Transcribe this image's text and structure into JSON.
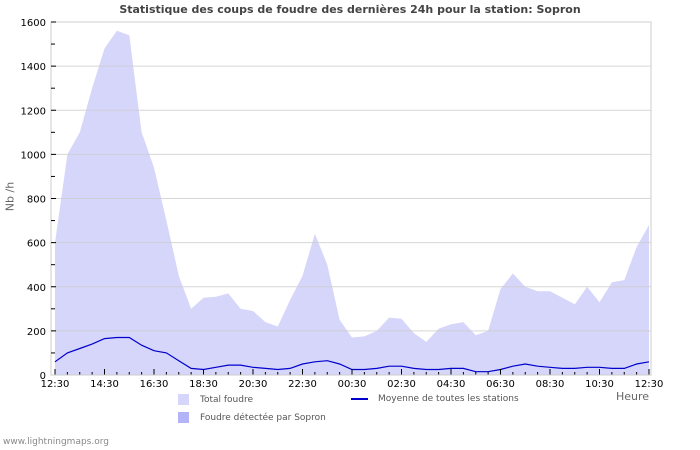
{
  "chart_data": {
    "type": "area",
    "title": "Statistique des coups de foudre des dernières 24h pour la station: Sopron",
    "xlabel": "Heure",
    "ylabel": "Nb /h",
    "ylim": [
      0,
      1600
    ],
    "yticks": [
      0,
      200,
      400,
      600,
      800,
      1000,
      1200,
      1400,
      1600
    ],
    "xtick_labels": [
      "12:30",
      "14:30",
      "16:30",
      "18:30",
      "20:30",
      "22:30",
      "00:30",
      "02:30",
      "04:30",
      "06:30",
      "08:30",
      "10:30",
      "12:30"
    ],
    "grid": true,
    "legend_position": "bottom",
    "x": [
      "12:30",
      "13:00",
      "13:30",
      "14:00",
      "14:30",
      "15:00",
      "15:30",
      "16:00",
      "16:30",
      "17:00",
      "17:30",
      "18:00",
      "18:30",
      "19:00",
      "19:30",
      "20:00",
      "20:30",
      "21:00",
      "21:30",
      "22:00",
      "22:30",
      "23:00",
      "23:30",
      "00:00",
      "00:30",
      "01:00",
      "01:30",
      "02:00",
      "02:30",
      "03:00",
      "03:30",
      "04:00",
      "04:30",
      "05:00",
      "05:30",
      "06:00",
      "06:30",
      "07:00",
      "07:30",
      "08:00",
      "08:30",
      "09:00",
      "09:30",
      "10:00",
      "10:30",
      "11:00",
      "11:30",
      "12:00",
      "12:30"
    ],
    "series": [
      {
        "name": "Total foudre",
        "type": "area",
        "color": "#d6d6fb",
        "values": [
          600,
          1000,
          1100,
          1300,
          1480,
          1560,
          1540,
          1100,
          940,
          700,
          450,
          300,
          350,
          355,
          370,
          300,
          290,
          240,
          220,
          340,
          450,
          640,
          500,
          250,
          170,
          175,
          200,
          260,
          255,
          190,
          150,
          210,
          230,
          240,
          180,
          200,
          390,
          460,
          400,
          380,
          380,
          350,
          320,
          400,
          330,
          420,
          430,
          580,
          680
        ]
      },
      {
        "name": "Foudre détectée par Sopron",
        "type": "area",
        "color": "#b3b3f7",
        "values": [
          0,
          0,
          0,
          0,
          0,
          0,
          0,
          0,
          0,
          0,
          0,
          0,
          0,
          0,
          0,
          0,
          0,
          0,
          0,
          0,
          0,
          0,
          0,
          0,
          0,
          0,
          0,
          0,
          0,
          0,
          0,
          0,
          0,
          0,
          0,
          0,
          0,
          0,
          0,
          0,
          0,
          0,
          0,
          0,
          0,
          0,
          0,
          0,
          0
        ]
      },
      {
        "name": "Moyenne de toutes les stations",
        "type": "line",
        "color": "#0000cc",
        "values": [
          60,
          100,
          120,
          140,
          165,
          170,
          170,
          135,
          110,
          100,
          65,
          30,
          25,
          35,
          45,
          45,
          35,
          30,
          25,
          30,
          50,
          60,
          65,
          50,
          25,
          25,
          30,
          40,
          40,
          30,
          25,
          25,
          30,
          30,
          15,
          15,
          25,
          40,
          50,
          40,
          35,
          30,
          30,
          35,
          35,
          30,
          30,
          50,
          60
        ]
      }
    ]
  },
  "legend": {
    "total": "Total foudre",
    "detected": "Foudre détectée par Sopron",
    "average": "Moyenne de toutes les stations"
  },
  "footer": "www.lightningmaps.org"
}
